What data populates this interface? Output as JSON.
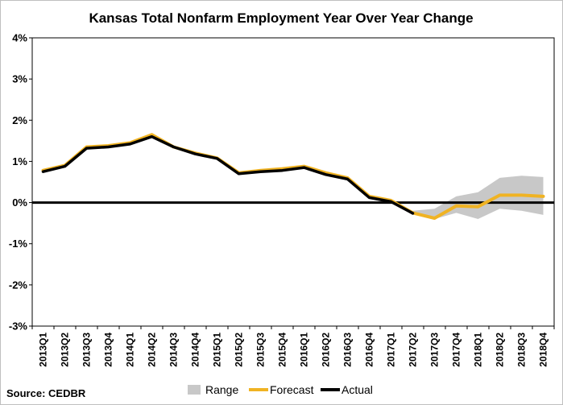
{
  "chart_data": {
    "type": "line",
    "title": "Kansas Total Nonfarm Employment Year Over Year Change",
    "categories": [
      "2013Q1",
      "2013Q2",
      "2013Q3",
      "2013Q4",
      "2014Q1",
      "2014Q2",
      "2014Q3",
      "2014Q4",
      "2015Q1",
      "2015Q2",
      "2015Q3",
      "2015Q4",
      "2016Q1",
      "2016Q2",
      "2016Q3",
      "2016Q4",
      "2017Q1",
      "2017Q2",
      "2017Q3",
      "2017Q4",
      "2018Q1",
      "2018Q2",
      "2018Q3",
      "2018Q4"
    ],
    "y_ticks": [
      "4%",
      "3%",
      "2%",
      "1%",
      "0%",
      "-1%",
      "-2%",
      "-3%"
    ],
    "ylim": [
      -3,
      4
    ],
    "series": [
      {
        "name": "Range",
        "kind": "area",
        "color": "#c8c8c8",
        "low": [
          null,
          null,
          null,
          null,
          null,
          null,
          null,
          null,
          null,
          null,
          null,
          null,
          null,
          null,
          null,
          null,
          null,
          -0.25,
          -0.4,
          -0.25,
          -0.4,
          -0.15,
          -0.2,
          -0.3
        ],
        "high": [
          null,
          null,
          null,
          null,
          null,
          null,
          null,
          null,
          null,
          null,
          null,
          null,
          null,
          null,
          null,
          null,
          null,
          -0.2,
          -0.15,
          0.15,
          0.25,
          0.6,
          0.65,
          0.62
        ]
      },
      {
        "name": "Forecast",
        "kind": "line",
        "color": "#f0b323",
        "values": [
          0.78,
          0.9,
          1.35,
          1.38,
          1.45,
          1.65,
          1.35,
          1.2,
          1.08,
          0.72,
          0.78,
          0.82,
          0.88,
          0.72,
          0.6,
          0.15,
          0.05,
          -0.25,
          -0.38,
          -0.08,
          -0.1,
          0.18,
          0.18,
          0.15
        ]
      },
      {
        "name": "Actual",
        "kind": "line",
        "color": "#000000",
        "values": [
          0.75,
          0.88,
          1.32,
          1.35,
          1.42,
          1.6,
          1.35,
          1.18,
          1.07,
          0.7,
          0.75,
          0.78,
          0.85,
          0.68,
          0.57,
          0.12,
          0.02,
          -0.26,
          null,
          null,
          null,
          null,
          null,
          null
        ]
      }
    ],
    "zero_line": true,
    "legend_position": "bottom",
    "grid": false,
    "source": "Source: CEDBR"
  }
}
